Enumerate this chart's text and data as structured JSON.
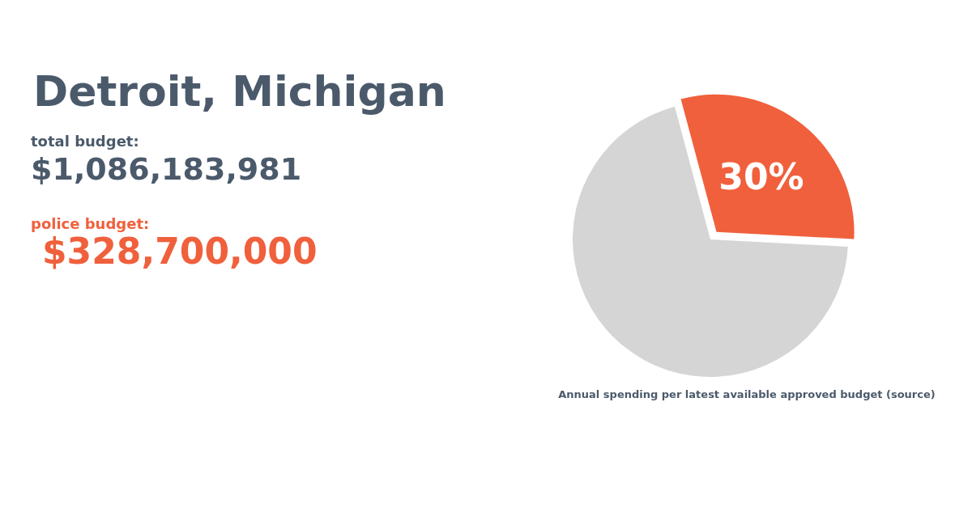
{
  "chart_data": {
    "type": "pie",
    "title": "Detroit, Michigan",
    "annotations": [
      "total budget:",
      "$1,086,183,981",
      "police budget:",
      "$328,700,000",
      "Annual spending per latest available approved budget (source)"
    ],
    "categories": [
      null,
      null
    ],
    "values": [
      30,
      70
    ],
    "colors": [
      "#f0603c",
      "#d5d5d5"
    ],
    "value_labels": [
      "30%",
      null
    ]
  }
}
